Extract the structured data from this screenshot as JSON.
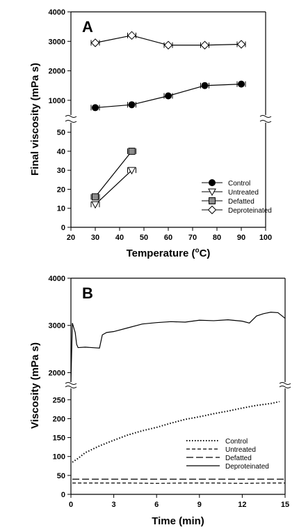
{
  "chart_data": [
    {
      "panel": "A",
      "type": "line",
      "xlabel": "Temperature (°C)",
      "ylabel": "Final viscosity (mPa s)",
      "x_ticks": [
        "20",
        "30",
        "40",
        "50",
        "60",
        "70",
        "80",
        "90",
        "100"
      ],
      "xlim": [
        20,
        100
      ],
      "y_ticks_upper": [
        "1000",
        "2000",
        "3000",
        "4000"
      ],
      "y_ticks_lower": [
        "0",
        "10",
        "20",
        "30",
        "40",
        "50"
      ],
      "ylim_upper": [
        500,
        4000
      ],
      "ylim_lower": [
        0,
        55
      ],
      "y_break": true,
      "legend_position": "lower-right",
      "legend": [
        "Control",
        "Untreated",
        "Defatted",
        "Deproteinated"
      ],
      "series": [
        {
          "name": "Control",
          "marker": "filled-circle",
          "x": [
            30,
            45,
            60,
            75,
            90
          ],
          "y": [
            750,
            850,
            1150,
            1500,
            1550
          ]
        },
        {
          "name": "Untreated",
          "marker": "open-down-triangle",
          "x": [
            30,
            45
          ],
          "y": [
            12,
            30
          ]
        },
        {
          "name": "Defatted",
          "marker": "gray-square",
          "x": [
            30,
            45
          ],
          "y": [
            16,
            40
          ]
        },
        {
          "name": "Deproteinated",
          "marker": "open-diamond",
          "x": [
            30,
            45,
            60,
            75,
            90
          ],
          "y": [
            2950,
            3200,
            2870,
            2870,
            2900
          ]
        }
      ]
    },
    {
      "panel": "B",
      "type": "line",
      "xlabel": "Time (min)",
      "ylabel": "Viscosity (mPa s)",
      "x_ticks": [
        "0",
        "3",
        "6",
        "9",
        "12",
        "15"
      ],
      "xlim": [
        0,
        15
      ],
      "y_ticks_upper": [
        "2000",
        "3000",
        "4000"
      ],
      "y_ticks_lower": [
        "0",
        "50",
        "100",
        "150",
        "200",
        "250"
      ],
      "ylim_upper": [
        1800,
        4000
      ],
      "ylim_lower": [
        0,
        280
      ],
      "y_break": true,
      "legend_position": "lower-right",
      "legend": [
        "Control",
        "Untreated",
        "Defatted",
        "Deproteinated"
      ],
      "series": [
        {
          "name": "Control",
          "style": "dotted",
          "x": [
            0.1,
            0.5,
            1,
            2,
            3,
            4,
            5,
            6,
            7,
            8,
            9,
            10,
            11,
            12,
            13,
            14,
            14.6
          ],
          "y": [
            85,
            95,
            110,
            128,
            143,
            157,
            168,
            177,
            188,
            198,
            205,
            213,
            220,
            228,
            235,
            240,
            245
          ]
        },
        {
          "name": "Untreated",
          "style": "dashed",
          "x": [
            0.1,
            2,
            4,
            6,
            8,
            10,
            12,
            14,
            15
          ],
          "y": [
            30,
            30,
            30,
            29,
            30,
            30,
            29,
            30,
            30
          ]
        },
        {
          "name": "Defatted",
          "style": "long-dashed",
          "x": [
            0.1,
            2,
            4,
            6,
            8,
            10,
            12,
            14,
            15
          ],
          "y": [
            40,
            40,
            40,
            40,
            40,
            40,
            40,
            40,
            40
          ]
        },
        {
          "name": "Deproteinated",
          "style": "solid",
          "x": [
            0,
            0.1,
            0.2,
            0.3,
            0.4,
            0.5,
            1,
            1.5,
            2,
            2.2,
            2.5,
            3,
            4,
            5,
            6,
            7,
            8,
            9,
            10,
            11,
            12,
            12.5,
            13,
            13.5,
            14,
            14.5,
            15
          ],
          "y": [
            1800,
            3050,
            2950,
            2850,
            2600,
            2530,
            2540,
            2530,
            2520,
            2800,
            2850,
            2870,
            2950,
            3030,
            3060,
            3080,
            3070,
            3110,
            3100,
            3120,
            3090,
            3050,
            3200,
            3250,
            3280,
            3270,
            3150
          ]
        }
      ]
    }
  ]
}
